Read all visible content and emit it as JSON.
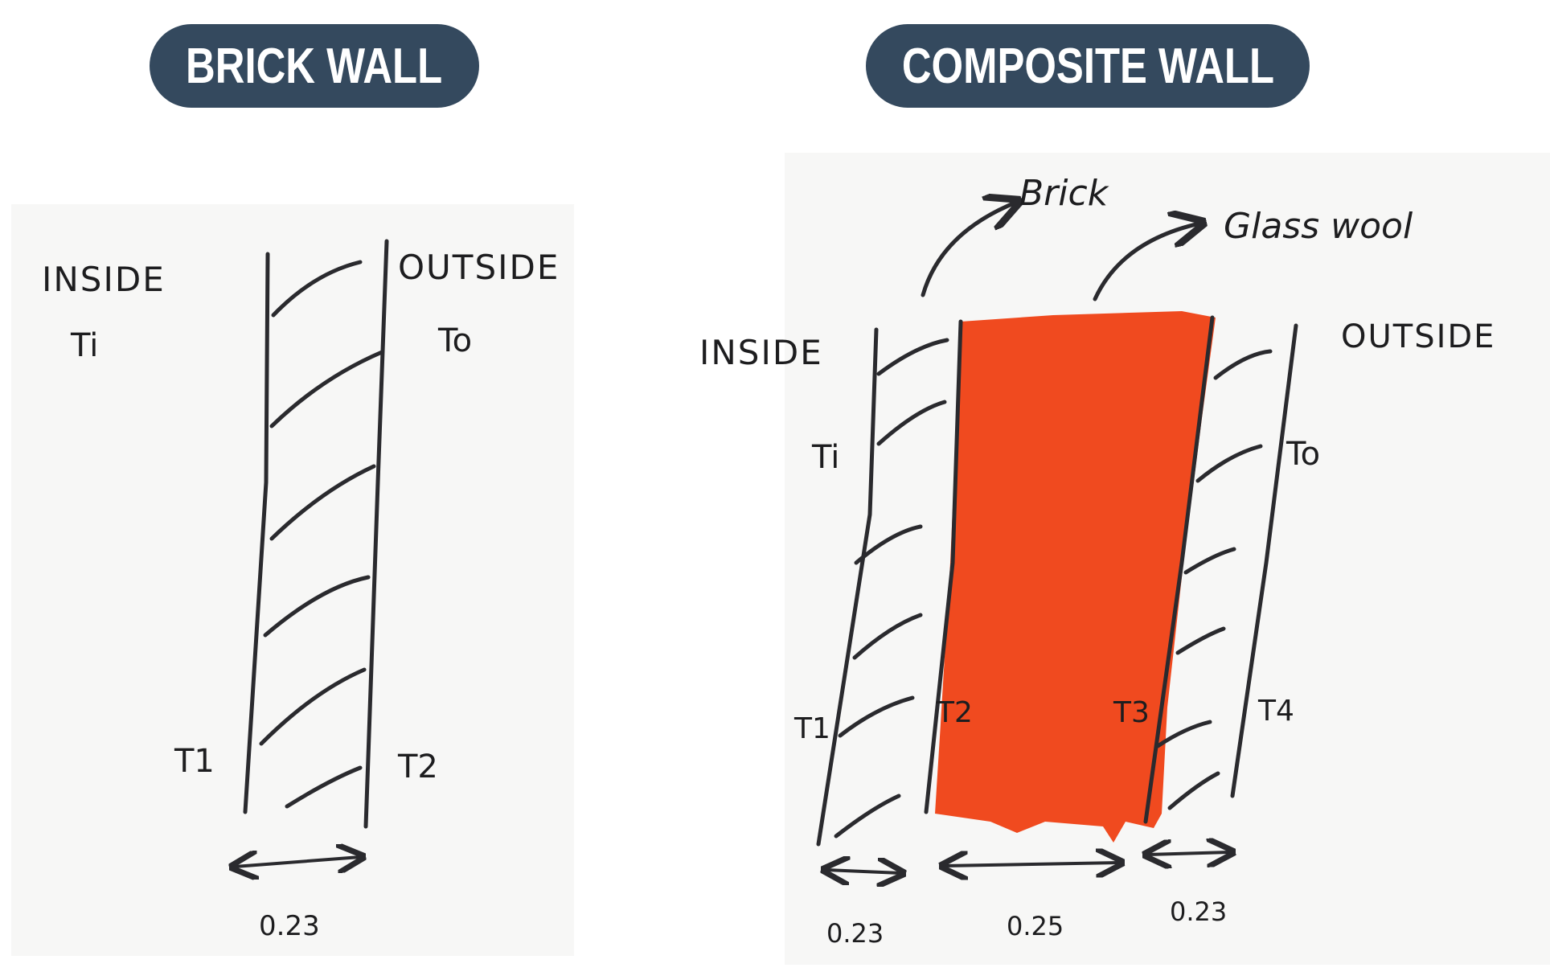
{
  "panels": {
    "brick_wall": {
      "title": "BRICK WALL",
      "inside_label": "INSIDE",
      "outside_label": "OUTSIDE",
      "t_inside": "Ti",
      "t_outside": "To",
      "t1": "T1",
      "t2": "T2",
      "thickness": "0.23"
    },
    "composite_wall": {
      "title": "COMPOSITE WALL",
      "inside_label": "INSIDE",
      "outside_label": "OUTSIDE",
      "layer_brick_label": "Brick",
      "layer_glasswool_label": "Glass wool",
      "t_inside": "Ti",
      "t_outside": "To",
      "t1": "T1",
      "t2": "T2",
      "t3": "T3",
      "t4": "T4",
      "thickness_brick_1": "0.23",
      "thickness_glasswool": "0.25",
      "thickness_brick_2": "0.23"
    }
  },
  "colors": {
    "title_pill": "#34495e",
    "glass_wool_fill": "#f04a1f",
    "ink": "#2a2a2e"
  }
}
